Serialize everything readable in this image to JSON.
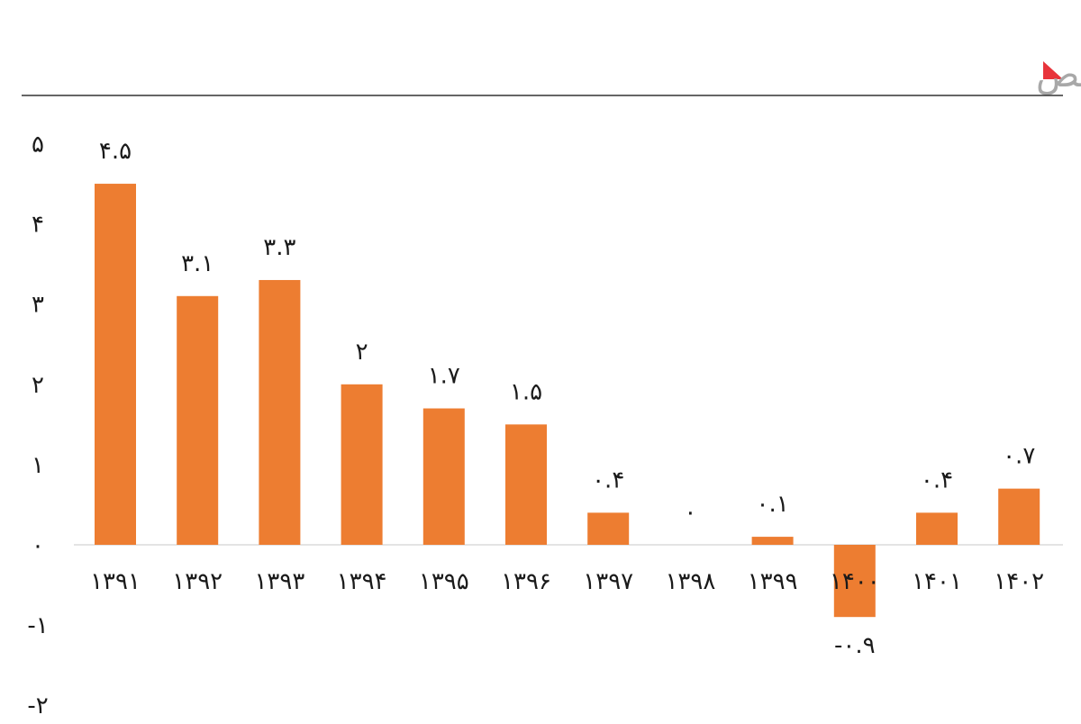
{
  "title": "رشد سالانه موجودی کل سرمایه خالص",
  "colors": {
    "bar": "#ED7D31",
    "title": "#a8a8a8",
    "accent": "#e8343b",
    "zero_line": "#dcdcdc",
    "rule": "#333333",
    "text": "#1a1a1a"
  },
  "chart_data": {
    "type": "bar",
    "title": "رشد سالانه موجودی کل سرمایه خالص",
    "categories": [
      "۱۳۹۱",
      "۱۳۹۲",
      "۱۳۹۳",
      "۱۳۹۴",
      "۱۳۹۵",
      "۱۳۹۶",
      "۱۳۹۷",
      "۱۳۹۸",
      "۱۳۹۹",
      "۱۴۰۰",
      "۱۴۰۱",
      "۱۴۰۲"
    ],
    "values": [
      4.5,
      3.1,
      3.3,
      2,
      1.7,
      1.5,
      0.4,
      0,
      0.1,
      -0.9,
      0.4,
      0.7
    ],
    "value_labels": [
      "۴.۵",
      "۳.۱",
      "۳.۳",
      "۲",
      "۱.۷",
      "۱.۵",
      "۰.۴",
      "۰",
      "۰.۱",
      "-۰.۹",
      "۰.۴",
      "۰.۷"
    ],
    "ylim": [
      -2,
      5
    ],
    "yticks": [
      5,
      4,
      3,
      2,
      1,
      0,
      -1,
      -2
    ],
    "ytick_labels": [
      "۵",
      "۴",
      "۳",
      "۲",
      "۱",
      "۰",
      "-۱",
      "-۲"
    ],
    "xlabel": "",
    "ylabel": "",
    "grid": false,
    "legend": "none"
  }
}
